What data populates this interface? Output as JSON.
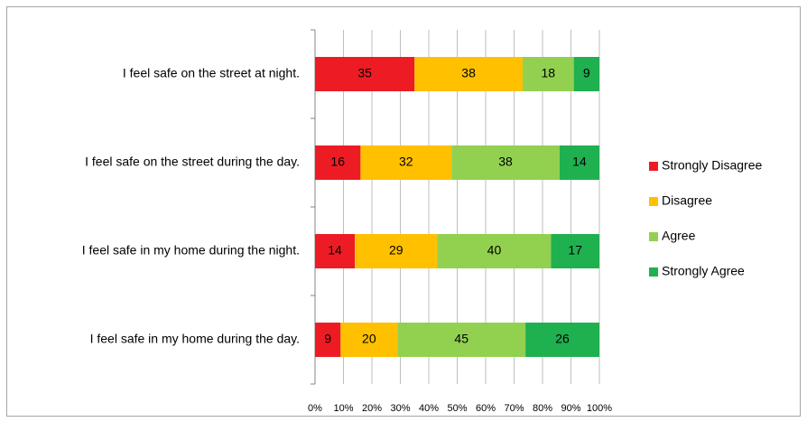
{
  "chart_data": {
    "type": "stacked-bar-horizontal",
    "categories": [
      "I feel safe on the street at night.",
      "I feel safe on the street during the day.",
      "I feel safe in my home during the night.",
      "I feel safe in my home during the day."
    ],
    "series": [
      {
        "name": "Strongly Disagree",
        "color": "#ed1c24",
        "values": [
          35,
          16,
          14,
          9
        ]
      },
      {
        "name": "Disagree",
        "color": "#ffc000",
        "values": [
          38,
          32,
          29,
          20
        ]
      },
      {
        "name": "Agree",
        "color": "#92d050",
        "values": [
          18,
          38,
          40,
          45
        ]
      },
      {
        "name": "Strongly Agree",
        "color": "#1fb050",
        "values": [
          9,
          14,
          17,
          26
        ]
      }
    ],
    "xlim": [
      0,
      100
    ],
    "xticks": [
      {
        "value": 0,
        "label": "0%"
      },
      {
        "value": 10,
        "label": "10%"
      },
      {
        "value": 20,
        "label": "20%"
      },
      {
        "value": 30,
        "label": "30%"
      },
      {
        "value": 40,
        "label": "40%"
      },
      {
        "value": 50,
        "label": "50%"
      },
      {
        "value": 60,
        "label": "60%"
      },
      {
        "value": 70,
        "label": "70%"
      },
      {
        "value": 80,
        "label": "80%"
      },
      {
        "value": 90,
        "label": "90%"
      },
      {
        "value": 100,
        "label": "100%"
      }
    ],
    "grid": true,
    "legend": "right"
  }
}
